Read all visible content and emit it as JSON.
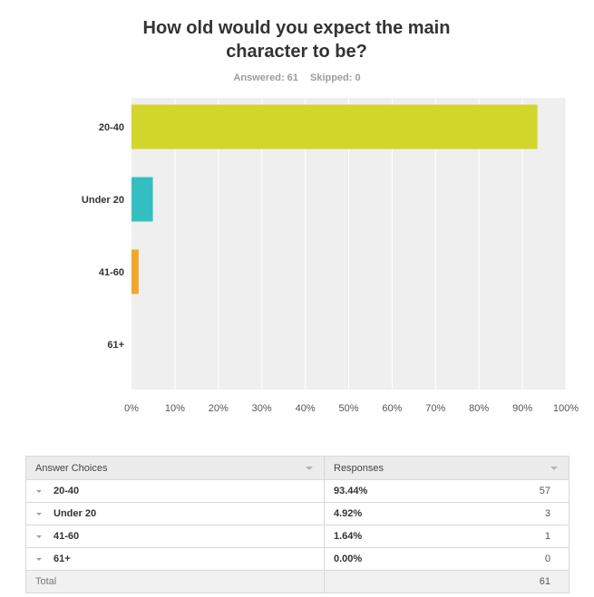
{
  "question": {
    "title_line1": "How old would you expect the main",
    "title_line2": "character to be?",
    "answered": "Answered: 61",
    "skipped": "Skipped: 0"
  },
  "colors": {
    "plot_background": "#efefef",
    "gridline": "#ffffff",
    "bar_20_40": "#d2d62a",
    "bar_under_20": "#33bfc2",
    "bar_41_60": "#f3a629"
  },
  "chart_data": {
    "type": "bar",
    "orientation": "horizontal",
    "categories": [
      "20-40",
      "Under 20",
      "41-60",
      "61+"
    ],
    "values": [
      93.44,
      4.92,
      1.64,
      0.0
    ],
    "xlim": [
      0,
      100
    ],
    "xticks": [
      "0%",
      "10%",
      "20%",
      "30%",
      "40%",
      "50%",
      "60%",
      "70%",
      "80%",
      "90%",
      "100%"
    ],
    "grid": true,
    "xlabel": "",
    "ylabel": ""
  },
  "table": {
    "headers": [
      "Answer Choices",
      "Responses"
    ],
    "rows": [
      {
        "choice": "20-40",
        "percent": "93.44%",
        "count": "57"
      },
      {
        "choice": "Under 20",
        "percent": "4.92%",
        "count": "3"
      },
      {
        "choice": "41-60",
        "percent": "1.64%",
        "count": "1"
      },
      {
        "choice": "61+",
        "percent": "0.00%",
        "count": "0"
      }
    ],
    "total_label": "Total",
    "total_count": "61"
  }
}
